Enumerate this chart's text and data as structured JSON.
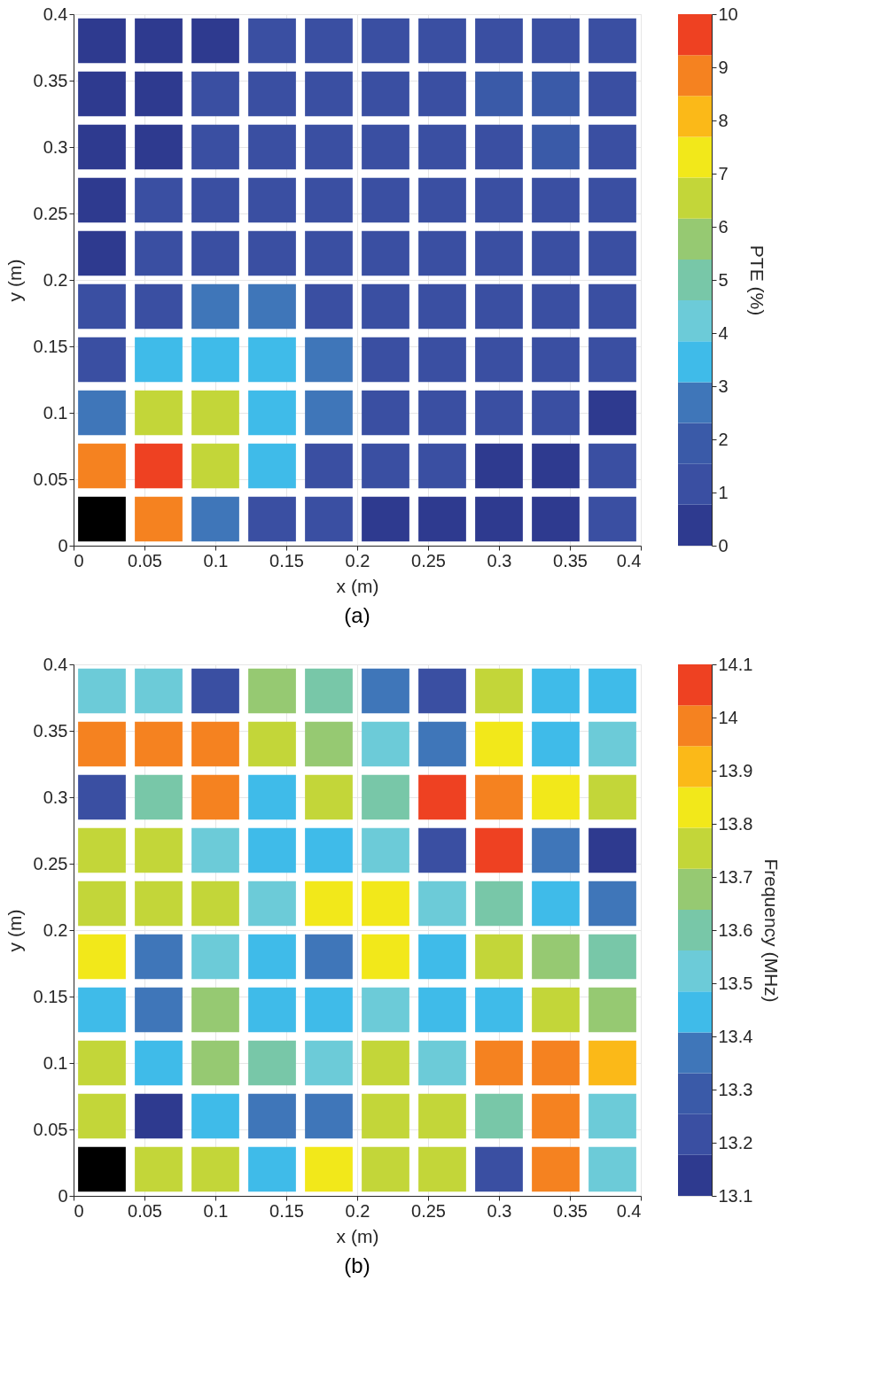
{
  "chart_data": [
    {
      "type": "heatmap",
      "xlabel": "x (m)",
      "ylabel": "y (m)",
      "clabel": "PTE (%)",
      "annotations": [
        "(a)"
      ],
      "x": [
        0.02,
        0.06,
        0.1,
        0.14,
        0.18,
        0.22,
        0.26,
        0.3,
        0.34,
        0.38
      ],
      "y": [
        0.38,
        0.34,
        0.3,
        0.26,
        0.22,
        0.18,
        0.14,
        0.1,
        0.06,
        0.02
      ],
      "xlim": [
        0,
        0.4
      ],
      "xticks": [
        0,
        0.05,
        0.1,
        0.15,
        0.2,
        0.25,
        0.3,
        0.35,
        0.4
      ],
      "ylim": [
        0,
        0.4
      ],
      "yticks": [
        0,
        0.05,
        0.1,
        0.15,
        0.2,
        0.25,
        0.3,
        0.35,
        0.4
      ],
      "clim": [
        0,
        10
      ],
      "cticks": [
        0,
        1,
        2,
        3,
        4,
        5,
        6,
        7,
        8,
        9,
        10
      ],
      "grid": true,
      "colors": [
        "#2e3a8f",
        "#3a4fa2",
        "#3a5aa8",
        "#3f76b9",
        "#3fbbe9",
        "#6ccbd8",
        "#78c7a8",
        "#96c972",
        "#c3d639",
        "#f2e81a",
        "#fbb918",
        "#f58220",
        "#ee4122"
      ],
      "cells": [
        [
          0.4,
          0.4,
          0.4,
          1.2,
          1.2,
          1.2,
          1.2,
          1.2,
          1.2,
          1.2
        ],
        [
          0.4,
          0.4,
          1.2,
          1.2,
          1.2,
          1.2,
          1.2,
          1.9,
          1.9,
          1.2
        ],
        [
          0.4,
          0.4,
          1.2,
          1.2,
          1.2,
          1.2,
          1.2,
          1.2,
          1.9,
          1.2
        ],
        [
          0.4,
          1.2,
          1.2,
          1.2,
          1.2,
          1.2,
          1.2,
          1.2,
          1.2,
          1.2
        ],
        [
          0.4,
          1.2,
          1.2,
          1.2,
          1.2,
          1.2,
          1.2,
          1.2,
          1.2,
          1.2
        ],
        [
          1.2,
          1.2,
          2.7,
          2.7,
          1.2,
          1.2,
          1.2,
          1.2,
          1.2,
          1.2
        ],
        [
          1.2,
          3.5,
          3.5,
          3.5,
          2.7,
          1.2,
          1.2,
          1.2,
          1.2,
          1.2
        ],
        [
          2.7,
          6.5,
          6.5,
          3.5,
          2.7,
          1.2,
          1.2,
          1.2,
          1.2,
          0.4
        ],
        [
          8.8,
          9.6,
          6.5,
          3.5,
          1.2,
          1.2,
          1.2,
          0.4,
          0.4,
          1.2
        ],
        [
          null,
          8.8,
          2.7,
          1.2,
          1.2,
          0.4,
          0.4,
          0.4,
          0.4,
          1.2
        ]
      ]
    },
    {
      "type": "heatmap",
      "xlabel": "x (m)",
      "ylabel": "y (m)",
      "clabel": "Frequency (MHz)",
      "annotations": [
        "(b)"
      ],
      "x": [
        0.02,
        0.06,
        0.1,
        0.14,
        0.18,
        0.22,
        0.26,
        0.3,
        0.34,
        0.38
      ],
      "y": [
        0.38,
        0.34,
        0.3,
        0.26,
        0.22,
        0.18,
        0.14,
        0.1,
        0.06,
        0.02
      ],
      "xlim": [
        0,
        0.4
      ],
      "xticks": [
        0,
        0.05,
        0.1,
        0.15,
        0.2,
        0.25,
        0.3,
        0.35,
        0.4
      ],
      "ylim": [
        0,
        0.4
      ],
      "yticks": [
        0,
        0.05,
        0.1,
        0.15,
        0.2,
        0.25,
        0.3,
        0.35,
        0.4
      ],
      "clim": [
        13.1,
        14.1
      ],
      "cticks": [
        13.1,
        13.2,
        13.3,
        13.4,
        13.5,
        13.6,
        13.7,
        13.8,
        13.9,
        14,
        14.1
      ],
      "grid": true,
      "colors": [
        "#2e3a8f",
        "#3a4fa2",
        "#3a5aa8",
        "#3f76b9",
        "#3fbbe9",
        "#6ccbd8",
        "#78c7a8",
        "#96c972",
        "#c3d639",
        "#f2e81a",
        "#fbb918",
        "#f58220",
        "#ee4122"
      ],
      "cells": [
        [
          13.52,
          13.52,
          13.22,
          13.68,
          13.6,
          13.37,
          13.22,
          13.75,
          13.45,
          13.45
        ],
        [
          13.98,
          13.98,
          13.98,
          13.75,
          13.68,
          13.52,
          13.37,
          13.83,
          13.45,
          13.52
        ],
        [
          13.22,
          13.6,
          13.98,
          13.45,
          13.75,
          13.6,
          14.06,
          13.98,
          13.83,
          13.75
        ],
        [
          13.75,
          13.75,
          13.52,
          13.45,
          13.45,
          13.52,
          13.22,
          14.06,
          13.37,
          13.14
        ],
        [
          13.75,
          13.75,
          13.75,
          13.52,
          13.83,
          13.83,
          13.52,
          13.6,
          13.45,
          13.37
        ],
        [
          13.83,
          13.37,
          13.52,
          13.45,
          13.37,
          13.83,
          13.45,
          13.75,
          13.68,
          13.6
        ],
        [
          13.45,
          13.37,
          13.68,
          13.45,
          13.45,
          13.52,
          13.45,
          13.45,
          13.75,
          13.68
        ],
        [
          13.75,
          13.45,
          13.68,
          13.6,
          13.52,
          13.75,
          13.52,
          13.98,
          13.98,
          13.91
        ],
        [
          13.75,
          13.14,
          13.45,
          13.37,
          13.37,
          13.75,
          13.75,
          13.6,
          13.98,
          13.52
        ],
        [
          null,
          13.75,
          13.75,
          13.45,
          13.83,
          13.75,
          13.75,
          13.22,
          13.98,
          13.52
        ]
      ]
    }
  ]
}
